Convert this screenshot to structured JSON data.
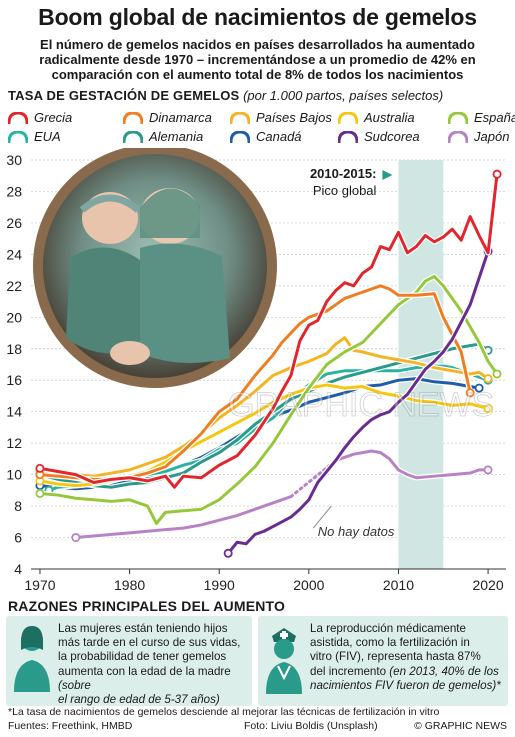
{
  "title": "Boom global de nacimientos de gemelos",
  "subtitle_lines": [
    "El número de gemelos nacidos en países desarrollados ha aumentado",
    "radicalmente desde 1970 – incrementándose a un promedio de 42% en",
    "comparación con el aumento total de 8% de todos los nacimientos"
  ],
  "chart_heading": {
    "label": "TASA DE GESTACIÓN DE GEMELOS",
    "qualifier": "(por 1.000 partos, países selectos)"
  },
  "chart_data": {
    "type": "line",
    "x_range": [
      1969,
      2022
    ],
    "ylim": [
      4,
      30
    ],
    "x_ticks": [
      1970,
      1980,
      1990,
      2000,
      2010,
      2020
    ],
    "y_ticks": [
      4,
      6,
      8,
      10,
      12,
      14,
      16,
      18,
      20,
      22,
      24,
      26,
      28,
      30
    ],
    "highlight_period": [
      2010,
      2015
    ],
    "highlight_label_bold": "2010-2015:",
    "highlight_label": "Pico global",
    "no_data_label": "No hay datos",
    "series": [
      {
        "name": "Grecia",
        "color": "#e2262c",
        "x": [
          1970,
          1972,
          1974,
          1976,
          1978,
          1980,
          1982,
          1984,
          1985,
          1986,
          1988,
          1990,
          1992,
          1994,
          1996,
          1997,
          1998,
          1999,
          2000,
          2001,
          2002,
          2003,
          2004,
          2005,
          2006,
          2007,
          2008,
          2009,
          2010,
          2011,
          2012,
          2013,
          2014,
          2015,
          2016,
          2017,
          2018,
          2019,
          2020,
          2021
        ],
        "y": [
          10.4,
          10.2,
          10.0,
          9.5,
          9.7,
          9.8,
          9.6,
          9.9,
          9.2,
          9.9,
          9.8,
          10.6,
          11.2,
          12.5,
          14.2,
          15.3,
          16.3,
          18.5,
          19.5,
          19.8,
          21.0,
          21.7,
          22.2,
          22.0,
          22.8,
          23.2,
          24.5,
          24.3,
          25.4,
          24.1,
          24.5,
          25.2,
          24.8,
          25.1,
          25.6,
          24.9,
          26.4,
          25.2,
          24.1,
          29.1
        ]
      },
      {
        "name": "Dinamarca",
        "color": "#f07d22",
        "x": [
          1970,
          1972,
          1974,
          1976,
          1978,
          1980,
          1982,
          1984,
          1986,
          1988,
          1990,
          1992,
          1994,
          1996,
          1997,
          1998,
          1999,
          2000,
          2002,
          2004,
          2006,
          2008,
          2009,
          2010,
          2012,
          2014,
          2015,
          2016,
          2017,
          2018
        ],
        "y": [
          10.0,
          9.9,
          9.8,
          9.7,
          9.7,
          9.8,
          10.1,
          10.5,
          11.5,
          12.6,
          14.0,
          14.8,
          16.3,
          17.6,
          18.4,
          19.0,
          19.6,
          20.0,
          20.4,
          21.2,
          21.6,
          22.0,
          21.8,
          21.4,
          21.4,
          21.5,
          20.0,
          18.9,
          17.8,
          15.2
        ]
      },
      {
        "name": "Países Bajos",
        "color": "#f4b424",
        "x": [
          1970,
          1972,
          1974,
          1976,
          1978,
          1980,
          1982,
          1984,
          1986,
          1988,
          1990,
          1992,
          1994,
          1996,
          1998,
          2000,
          2002,
          2003,
          2004,
          2005,
          2006,
          2008,
          2010,
          2012,
          2014,
          2016,
          2018,
          2019,
          2020
        ],
        "y": [
          10.3,
          10.1,
          10.0,
          9.9,
          10.1,
          10.3,
          10.7,
          11.1,
          11.8,
          12.6,
          13.6,
          14.4,
          15.3,
          16.3,
          16.8,
          17.2,
          17.7,
          18.3,
          18.7,
          17.9,
          17.8,
          17.5,
          17.3,
          17.1,
          16.8,
          16.6,
          16.4,
          16.5,
          16.1
        ]
      },
      {
        "name": "Australia",
        "color": "#f6c70f",
        "x": [
          1970,
          1972,
          1974,
          1976,
          1978,
          1980,
          1982,
          1984,
          1986,
          1988,
          1990,
          1992,
          1994,
          1996,
          1998,
          2000,
          2002,
          2004,
          2006,
          2008,
          2010,
          2012,
          2014,
          2016,
          2018,
          2020
        ],
        "y": [
          9.6,
          9.4,
          9.3,
          9.4,
          9.6,
          9.9,
          10.2,
          10.8,
          11.5,
          12.1,
          12.7,
          13.3,
          13.9,
          14.6,
          15.1,
          15.5,
          15.7,
          15.5,
          15.6,
          15.2,
          15.0,
          14.7,
          14.6,
          14.4,
          14.5,
          14.2
        ]
      },
      {
        "name": "España",
        "color": "#97c83c",
        "x": [
          1970,
          1972,
          1974,
          1976,
          1978,
          1980,
          1982,
          1983,
          1984,
          1986,
          1988,
          1990,
          1992,
          1994,
          1996,
          1998,
          2000,
          2002,
          2004,
          2006,
          2008,
          2010,
          2012,
          2013,
          2014,
          2015,
          2016,
          2017,
          2018,
          2019,
          2020,
          2021
        ],
        "y": [
          8.8,
          8.7,
          8.5,
          8.4,
          8.3,
          8.4,
          8.0,
          6.9,
          7.6,
          7.7,
          7.8,
          8.4,
          9.4,
          10.5,
          12.0,
          13.8,
          15.5,
          17.0,
          17.8,
          18.4,
          19.6,
          20.8,
          21.6,
          22.3,
          22.6,
          22.0,
          21.2,
          20.4,
          19.4,
          18.4,
          17.2,
          16.4
        ]
      },
      {
        "name": "EUA",
        "color": "#2ab3a3",
        "x": [
          1971,
          1972,
          1974,
          1976,
          1978,
          1980,
          1982,
          1984,
          1986,
          1988,
          1990,
          1992,
          1994,
          1996,
          1998,
          2000,
          2002,
          2004,
          2006,
          2008,
          2010,
          2012,
          2014,
          2015,
          2016,
          2018,
          2020
        ],
        "y": [
          9.0,
          9.2,
          9.3,
          9.4,
          9.6,
          9.9,
          10.0,
          10.2,
          10.6,
          10.9,
          11.6,
          12.0,
          12.9,
          13.6,
          14.8,
          15.7,
          16.4,
          16.6,
          16.6,
          16.6,
          16.6,
          16.8,
          16.9,
          16.9,
          16.8,
          16.4,
          16.0
        ]
      },
      {
        "name": "Alemania",
        "color": "#2a9a8b",
        "x": [
          1970,
          1972,
          1974,
          1976,
          1978,
          1980,
          1982,
          1984,
          1986,
          1988,
          1990,
          1992,
          1994,
          1996,
          1998,
          2000,
          2002,
          2004,
          2006,
          2008,
          2010,
          2012,
          2014,
          2016,
          2018,
          2019,
          2020
        ],
        "y": [
          10.0,
          9.7,
          9.5,
          9.3,
          9.2,
          9.4,
          9.5,
          9.8,
          10.1,
          10.8,
          11.4,
          12.2,
          13.2,
          14.0,
          14.8,
          15.3,
          15.8,
          16.2,
          16.5,
          16.8,
          17.1,
          17.4,
          17.7,
          18.0,
          18.2,
          18.3,
          17.9
        ]
      },
      {
        "name": "Canadá",
        "color": "#1f5ca9",
        "x": [
          1970,
          1972,
          1974,
          1976,
          1978,
          1980,
          1982,
          1984,
          1986,
          1988,
          1990,
          1992,
          1994,
          1996,
          1998,
          2000,
          2002,
          2004,
          2006,
          2008,
          2010,
          2012,
          2014,
          2016,
          2018,
          2019
        ],
        "y": [
          9.3,
          9.2,
          9.1,
          9.2,
          9.4,
          9.6,
          9.8,
          10.2,
          10.6,
          11.1,
          11.7,
          12.4,
          13.1,
          13.7,
          14.1,
          14.6,
          14.9,
          15.2,
          15.6,
          15.7,
          16.0,
          16.1,
          15.9,
          15.8,
          15.6,
          15.5
        ]
      },
      {
        "name": "Sudcorea",
        "color": "#6a2c91",
        "x": [
          1991,
          1992,
          1993,
          1994,
          1995,
          1996,
          1997,
          1998,
          1999,
          2000,
          2001,
          2002,
          2003,
          2004,
          2005,
          2006,
          2007,
          2008,
          2009,
          2010,
          2011,
          2012,
          2013,
          2014,
          2015,
          2016,
          2017,
          2018,
          2019,
          2020
        ],
        "y": [
          5.0,
          5.7,
          5.6,
          6.2,
          6.4,
          6.7,
          7.0,
          7.3,
          7.8,
          8.4,
          9.5,
          10.2,
          10.9,
          11.7,
          12.4,
          13.0,
          13.5,
          13.8,
          14.0,
          14.6,
          15.1,
          15.9,
          16.7,
          17.2,
          17.8,
          18.6,
          19.7,
          20.8,
          22.5,
          24.2
        ]
      },
      {
        "name": "Japón",
        "color": "#b783c6",
        "x": [
          1974,
          1976,
          1978,
          1980,
          1982,
          1984,
          1986,
          1988,
          1990,
          1992,
          1994,
          1995,
          1996,
          1997,
          1998,
          2003,
          2004,
          2005,
          2006,
          2007,
          2008,
          2009,
          2010,
          2011,
          2012,
          2014,
          2016,
          2018,
          2019,
          2020
        ],
        "y": [
          6.0,
          6.1,
          6.2,
          6.3,
          6.4,
          6.5,
          6.6,
          6.8,
          7.1,
          7.4,
          7.8,
          8.0,
          8.2,
          8.4,
          8.6,
          10.9,
          11.1,
          11.3,
          11.4,
          11.5,
          11.4,
          11.0,
          10.3,
          10.0,
          9.8,
          9.9,
          10.0,
          10.1,
          10.3,
          10.3
        ],
        "no_data_gap": [
          1998,
          2003
        ]
      }
    ]
  },
  "watermark": "GRAPHIC NEWS",
  "reasons": {
    "title": "RAZONES PRINCIPALES DEL AUMENTO",
    "items": [
      {
        "icon": "woman-icon",
        "lines": [
          "Las mujeres están teniendo hijos",
          "más tarde en el curso de sus vidas,",
          "la probabilidad de tener gemelos",
          "aumenta con la edad de la madre "
        ],
        "italic_lines": [
          "(sobre",
          "el rango de edad de 5-37 años)"
        ]
      },
      {
        "icon": "nurse-icon",
        "lines": [
          "La reproducción médicamente",
          "asistida, como la fertilización in",
          "vitro (FIV), representa hasta 87%",
          "del incremento "
        ],
        "italic_lines": [
          "(en 2013, 40% de los",
          "nacimientos FIV fueron de gemelos)*"
        ]
      }
    ]
  },
  "footnote": "*La tasa de nacimientos de gemelos desciende al mejorar las técnicas de fertilización in vitro",
  "sources": "Fuentes: Freethink, HMBD",
  "photo_credit": "Foto: Liviu Boldis (Unsplash)",
  "brand": "© GRAPHIC NEWS",
  "colors": {
    "highlight_band": "#cfe6e2",
    "panel_bg": "#dbeeea",
    "icon_teal": "#2a9a8b"
  }
}
